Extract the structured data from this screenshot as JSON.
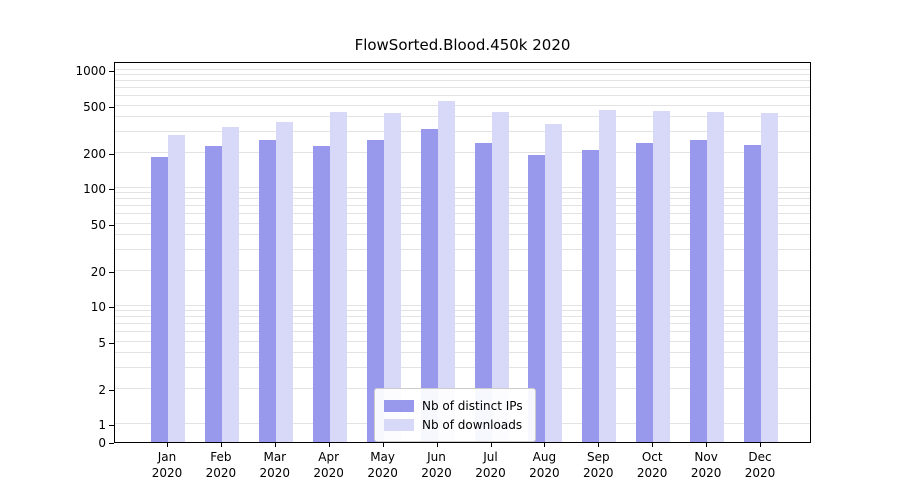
{
  "title": "FlowSorted.Blood.450k 2020",
  "colors": {
    "ips": "#9898ec",
    "downloads": "#d8d8f8",
    "grid": "#e3e3e3",
    "axis": "#000000"
  },
  "legend": {
    "items": [
      {
        "label": "Nb of distinct IPs",
        "color_key": "ips"
      },
      {
        "label": "Nb of downloads",
        "color_key": "downloads"
      }
    ]
  },
  "chart_data": {
    "type": "bar",
    "title": "FlowSorted.Blood.450k 2020",
    "categories": [
      "Jan",
      "Feb",
      "Mar",
      "Apr",
      "May",
      "Jun",
      "Jul",
      "Aug",
      "Sep",
      "Oct",
      "Nov",
      "Dec"
    ],
    "category_year": "2020",
    "series": [
      {
        "name": "Nb of distinct IPs",
        "values": [
          185,
          225,
          255,
          225,
          255,
          315,
          240,
          190,
          210,
          240,
          255,
          230
        ]
      },
      {
        "name": "Nb of downloads",
        "values": [
          280,
          330,
          365,
          440,
          430,
          545,
          440,
          350,
          455,
          450,
          440,
          435
        ]
      }
    ],
    "yscale": "symlog",
    "yticks": [
      0,
      1,
      2,
      5,
      10,
      20,
      50,
      100,
      200,
      500,
      1000
    ],
    "ylim": [
      0,
      1000
    ],
    "xlabel": "",
    "ylabel": "",
    "grid": true,
    "legend_position": "lower center"
  }
}
